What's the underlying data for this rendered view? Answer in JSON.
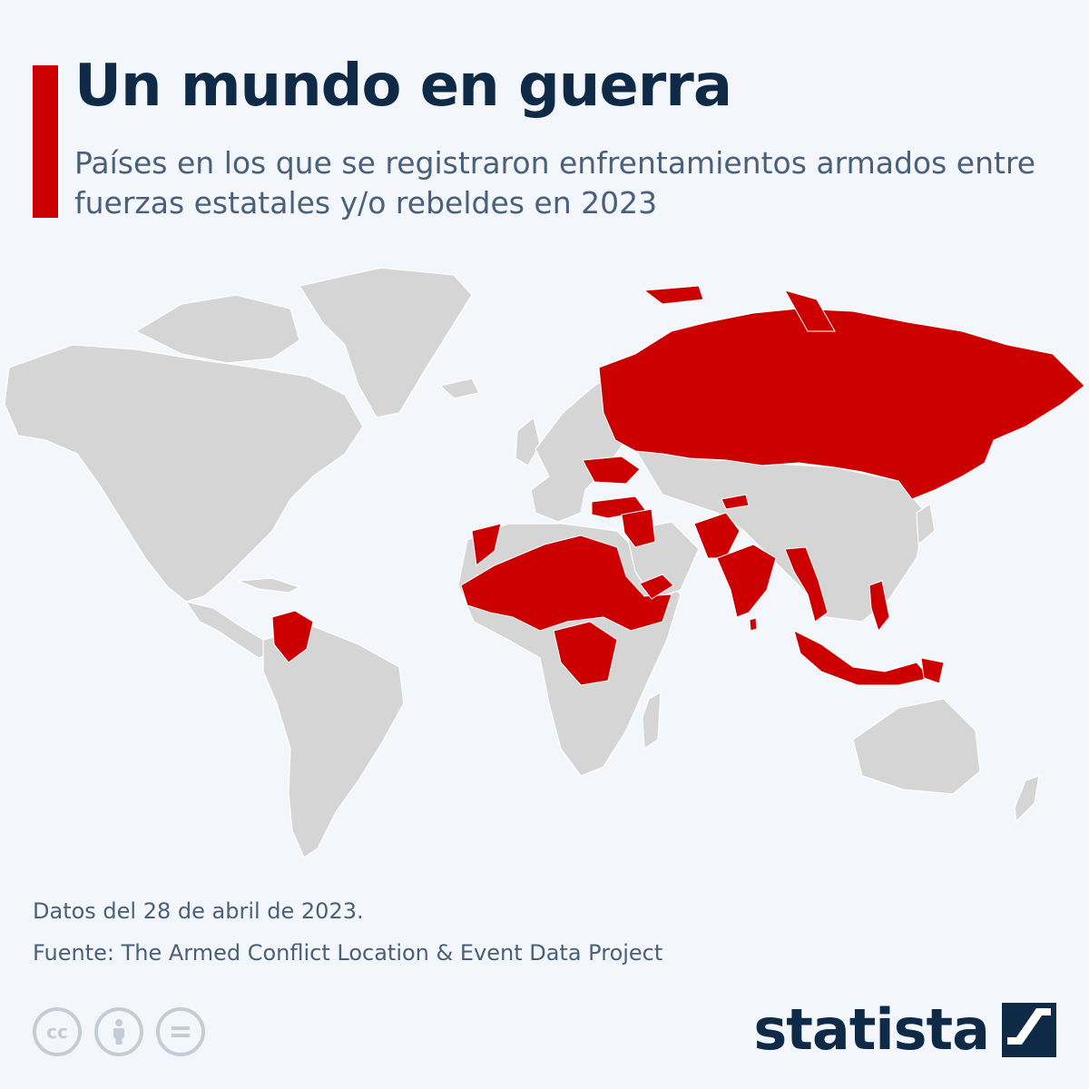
{
  "header": {
    "title": "Un mundo en guerra",
    "subtitle": "Países en los que se registraron enfrentamientos armados entre fuerzas estatales y/o rebeldes en 2023"
  },
  "map": {
    "conflict_color": "#cc0000",
    "land_color": "#d5d5d5",
    "background_color": "#f3f7fb",
    "highlighted_regions": [
      "Rusia",
      "Ucrania",
      "Turquía",
      "Siria",
      "Irak",
      "Marruecos",
      "Libia",
      "Egipto",
      "Malí",
      "Níger",
      "Chad",
      "Sudán",
      "Nigeria",
      "Burkina Faso",
      "Etiopía",
      "Somalia",
      "Yemen",
      "República Democrática del Congo",
      "Afganistán",
      "Pakistán",
      "India",
      "Myanmar",
      "Tailandia",
      "Filipinas",
      "Indonesia",
      "Papúa Nueva Guinea",
      "Colombia",
      "Kirguistán"
    ]
  },
  "footer": {
    "note": "Datos del 28 de abril de 2023.",
    "source": "Fuente: The Armed Conflict Location & Event Data Project",
    "license_icons": [
      "cc-icon",
      "attribution-icon",
      "no-derivatives-icon"
    ],
    "brand": "statista"
  }
}
